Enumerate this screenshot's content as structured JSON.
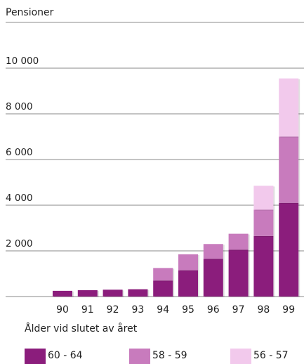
{
  "chart_data": {
    "type": "bar",
    "stacked": true,
    "title": "Pensioner",
    "categories": [
      "90",
      "91",
      "92",
      "93",
      "94",
      "95",
      "96",
      "97",
      "98",
      "99"
    ],
    "series": [
      {
        "name": "60 - 64",
        "color": "#8b1d7c",
        "values": [
          250,
          280,
          300,
          320,
          700,
          1150,
          1650,
          2050,
          2650,
          4100
        ]
      },
      {
        "name": "58 - 59",
        "color": "#c87bbd",
        "values": [
          0,
          0,
          0,
          0,
          550,
          700,
          650,
          700,
          1150,
          2900
        ]
      },
      {
        "name": "56 - 57",
        "color": "#f2c9ec",
        "values": [
          0,
          0,
          0,
          0,
          0,
          0,
          0,
          0,
          1050,
          2550
        ]
      }
    ],
    "ylim": [
      0,
      10000
    ],
    "yticks": [
      2000,
      4000,
      6000,
      8000,
      10000
    ],
    "ytick_labels": [
      "2 000",
      "4 000",
      "6 000",
      "8 000",
      "10 000"
    ],
    "grid": true,
    "legend_title": "Ålder vid slutet av året",
    "legend_position": "bottom"
  }
}
